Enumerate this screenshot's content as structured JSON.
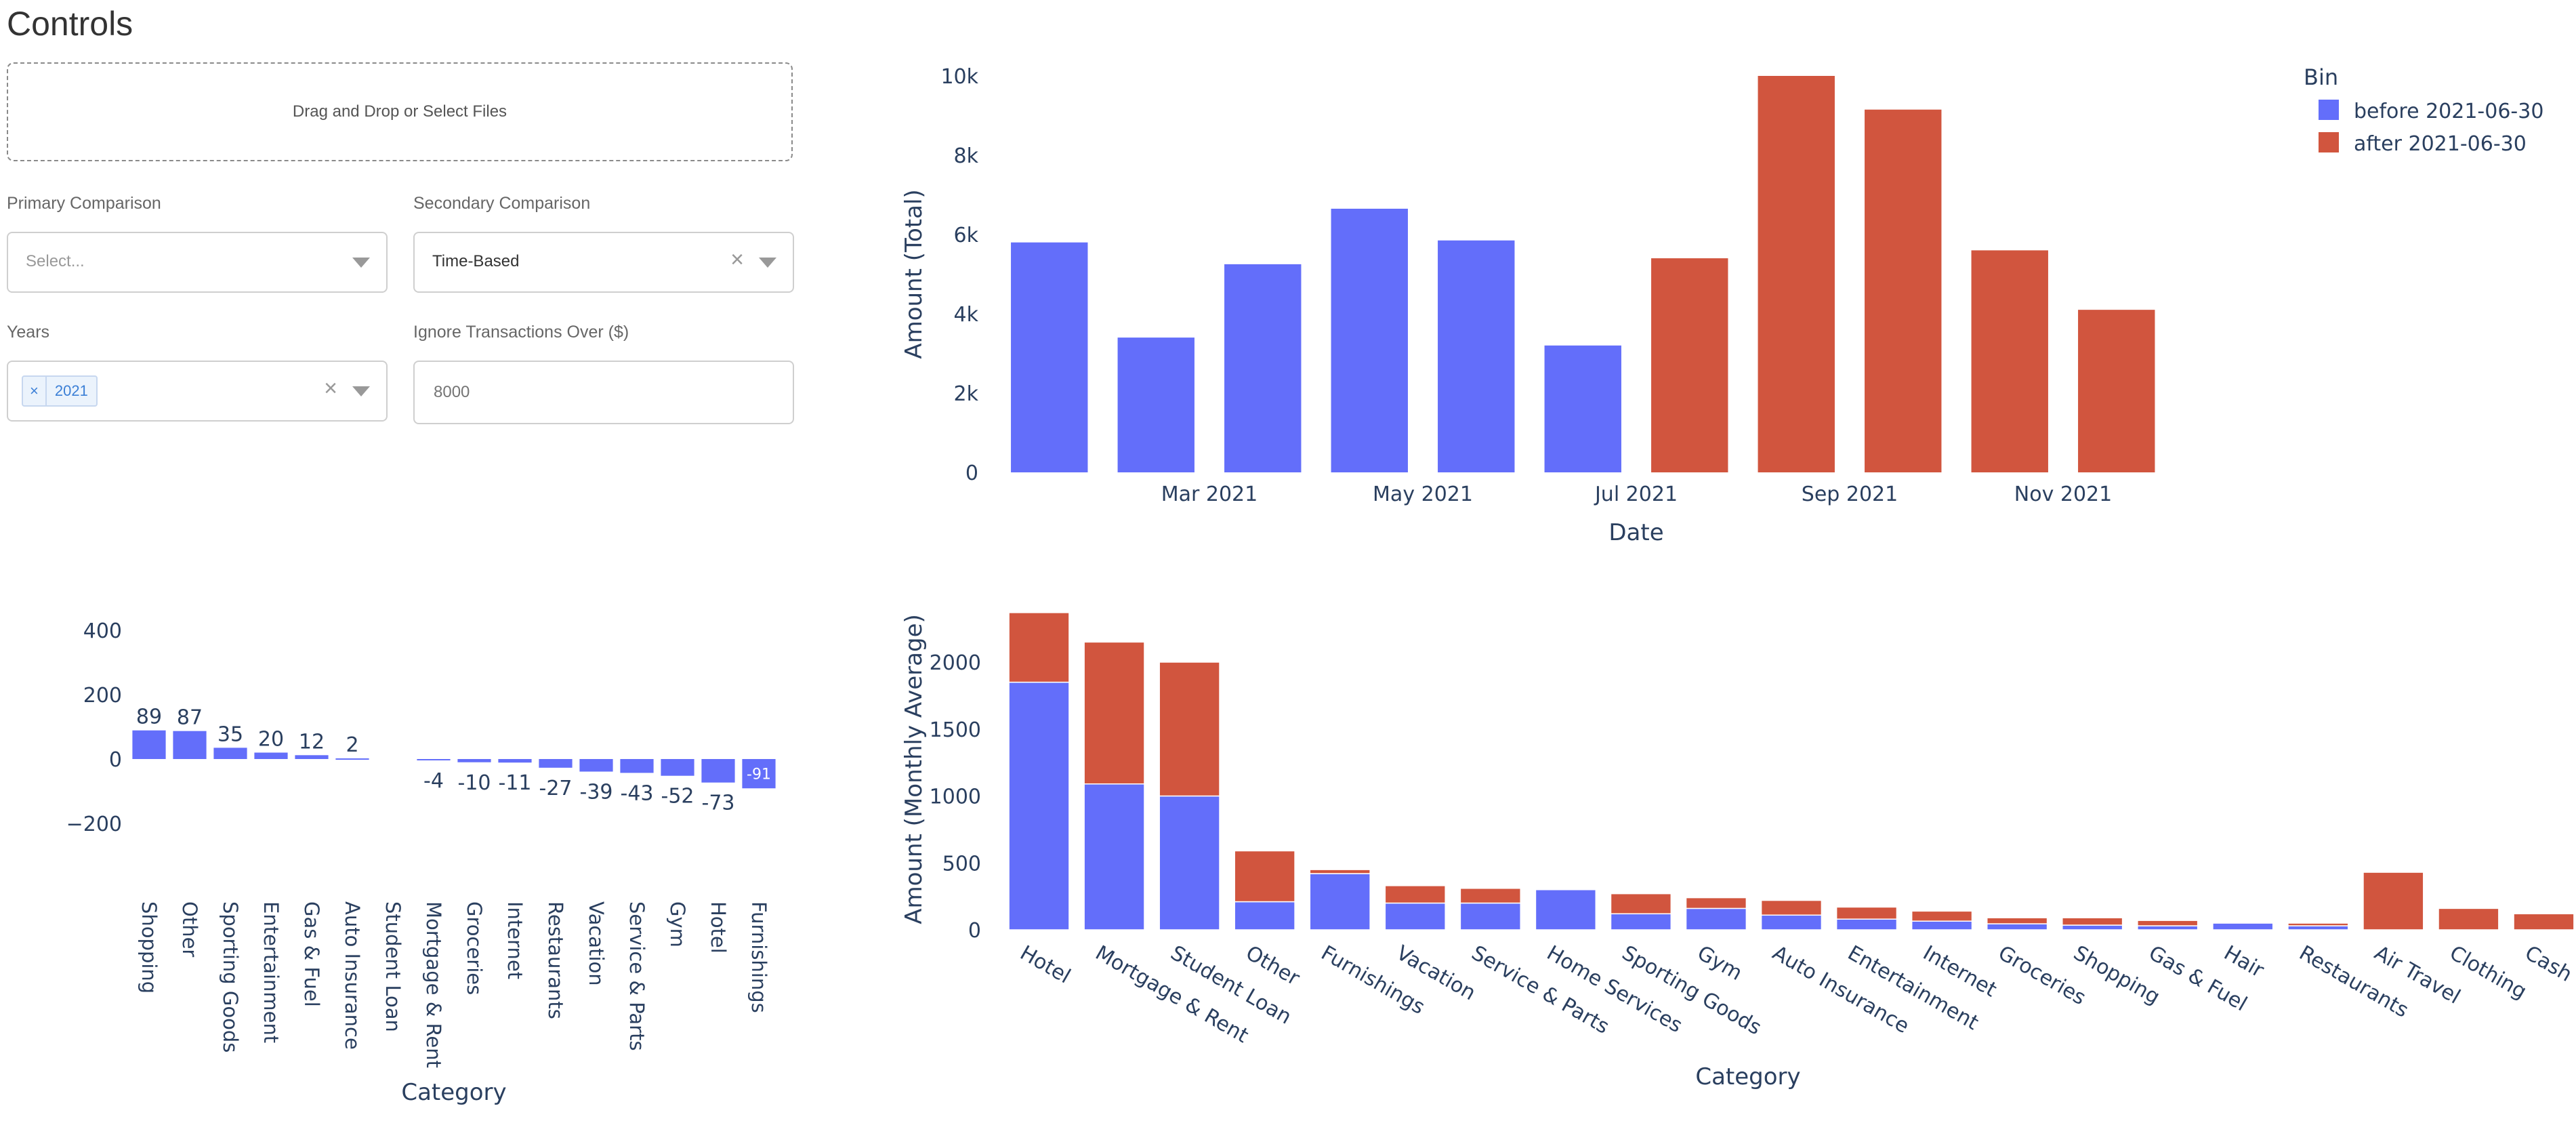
{
  "controls": {
    "title": "Controls",
    "upload_text": "Drag and Drop or Select Files",
    "primary": {
      "label": "Primary Comparison",
      "placeholder": "Select..."
    },
    "secondary": {
      "label": "Secondary Comparison",
      "value": "Time-Based",
      "clear": "×"
    },
    "years": {
      "label": "Years",
      "tag_remove": "×",
      "tag": "2021",
      "clear": "×"
    },
    "ignore": {
      "label": "Ignore Transactions Over ($)",
      "placeholder": "8000"
    }
  },
  "chart_data": [
    {
      "type": "bar",
      "xlabel": "Date",
      "ylabel": "Amount (Total)",
      "ylim": [
        0,
        10000
      ],
      "yticks": [
        0,
        2000,
        4000,
        6000,
        8000,
        10000
      ],
      "yticklabels": [
        "0",
        "2k",
        "4k",
        "6k",
        "8k",
        "10k"
      ],
      "xticks": [
        "2021-03",
        "2021-05",
        "2021-07",
        "2021-09",
        "2021-11"
      ],
      "xticklabels": [
        "Mar 2021",
        "May 2021",
        "Jul 2021",
        "Sep 2021",
        "Nov 2021"
      ],
      "legend": {
        "title": "Bin",
        "position": "top-right"
      },
      "grid": false,
      "x": [
        "2021-01",
        "2021-02",
        "2021-03",
        "2021-04",
        "2021-05",
        "2021-06",
        "2021-07",
        "2021-08",
        "2021-09",
        "2021-10",
        "2021-11",
        "2021-12"
      ],
      "series": [
        {
          "name": "before 2021-06-30",
          "color": "#636efa",
          "values": [
            5800,
            3400,
            5250,
            6650,
            5850,
            3200,
            null,
            null,
            null,
            null,
            null,
            null
          ]
        },
        {
          "name": "after 2021-06-30",
          "color": "#d1553e",
          "values": [
            null,
            null,
            null,
            null,
            null,
            null,
            5400,
            10000,
            9150,
            5600,
            4100,
            null
          ]
        }
      ]
    },
    {
      "type": "bar",
      "xlabel": "Category",
      "ylabel": "",
      "ylim": [
        -400,
        400
      ],
      "yticks": [
        -200,
        0,
        200,
        400
      ],
      "yticklabels": [
        "−200",
        "0",
        "200",
        "400"
      ],
      "grid": false,
      "bar_color": "#636efa",
      "categories": [
        "Shopping",
        "Other",
        "Sporting Goods",
        "Entertainment",
        "Gas & Fuel",
        "Auto Insurance",
        "Student Loan",
        "Mortgage & Rent",
        "Groceries",
        "Internet",
        "Restaurants",
        "Vacation",
        "Service & Parts",
        "Gym",
        "Hotel",
        "Furnishings"
      ],
      "values": [
        89,
        87,
        35,
        20,
        12,
        2,
        0,
        -4,
        -10,
        -11,
        -27,
        -39,
        -43,
        -52,
        -73,
        -91
      ],
      "labels": [
        "89",
        "87",
        "35",
        "20",
        "12",
        "2",
        "",
        "-4",
        "-10",
        "-11",
        "-27",
        "-39",
        "-43",
        "-52",
        "-73",
        "-91"
      ]
    },
    {
      "type": "bar",
      "stacked": true,
      "xlabel": "Category",
      "ylabel": "Amount (Monthly Average)",
      "ylim": [
        0,
        2400
      ],
      "yticks": [
        0,
        500,
        1000,
        1500,
        2000
      ],
      "yticklabels": [
        "0",
        "500",
        "1000",
        "1500",
        "2000"
      ],
      "grid": false,
      "categories": [
        "Hotel",
        "Mortgage & Rent",
        "Student Loan",
        "Other",
        "Furnishings",
        "Vacation",
        "Service & Parts",
        "Home Services",
        "Sporting Goods",
        "Gym",
        "Auto Insurance",
        "Entertainment",
        "Internet",
        "Groceries",
        "Shopping",
        "Gas & Fuel",
        "Hair",
        "Restaurants",
        "Air Travel",
        "Clothing",
        "Cash & ATM"
      ],
      "series": [
        {
          "name": "before 2021-06-30",
          "color": "#636efa",
          "values": [
            1850,
            1090,
            1000,
            210,
            420,
            200,
            200,
            300,
            120,
            160,
            110,
            80,
            65,
            45,
            35,
            30,
            50,
            30,
            0,
            0,
            0
          ]
        },
        {
          "name": "after 2021-06-30",
          "color": "#d1553e",
          "values": [
            520,
            1060,
            1000,
            380,
            30,
            130,
            110,
            0,
            150,
            80,
            110,
            90,
            75,
            45,
            55,
            40,
            0,
            20,
            430,
            160,
            120
          ]
        }
      ]
    }
  ]
}
